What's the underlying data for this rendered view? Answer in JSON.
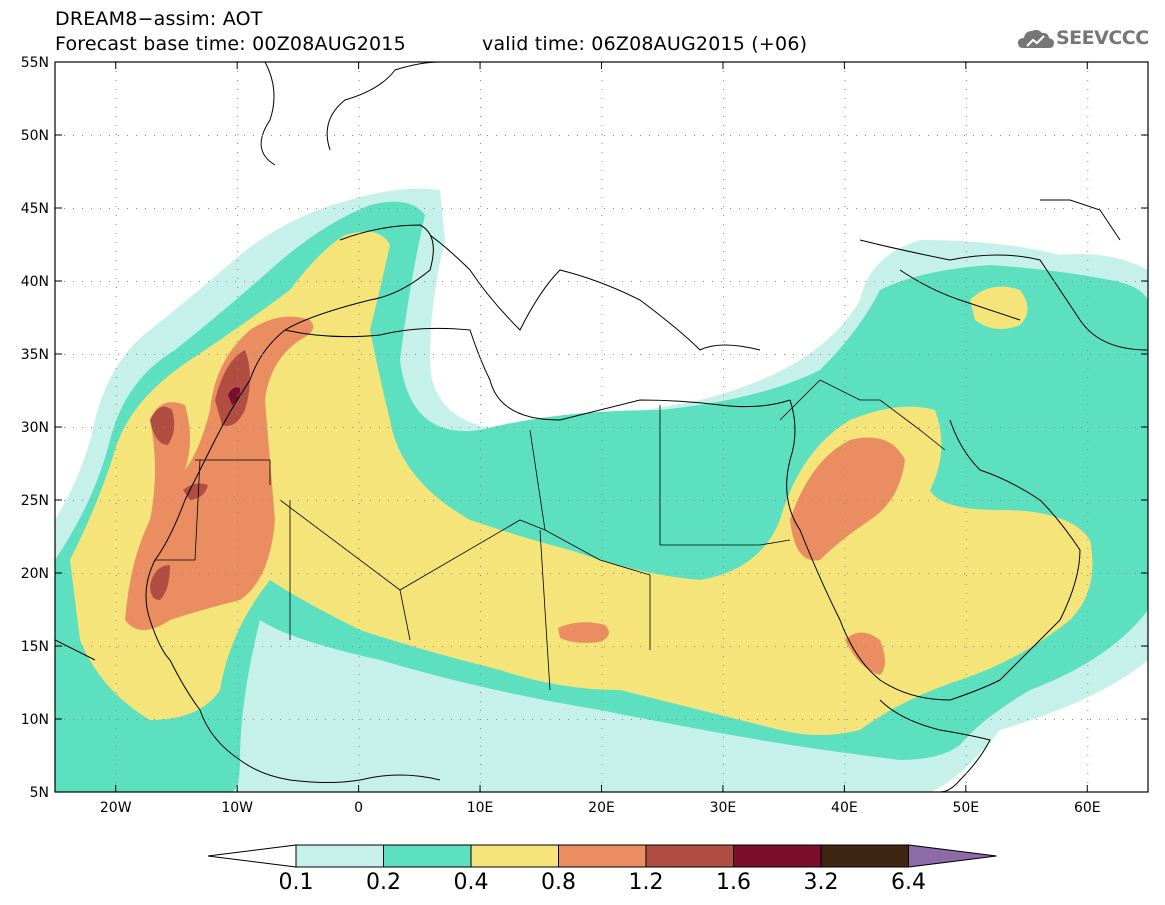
{
  "title": {
    "line1": "DREAM8−assim: AOT",
    "line2": "Forecast base time: 00Z08AUG2015",
    "valid": "valid time: 06Z08AUG2015 (+06)"
  },
  "logo": {
    "text": "SEEVCCC",
    "icon": "cloud-icon"
  },
  "axes": {
    "lat_labels": [
      "55N",
      "50N",
      "45N",
      "40N",
      "35N",
      "30N",
      "25N",
      "20N",
      "15N",
      "10N",
      "5N"
    ],
    "lon_labels": [
      "20W",
      "10W",
      "0",
      "10E",
      "20E",
      "30E",
      "40E",
      "50E",
      "60E"
    ],
    "lat_range": [
      5,
      55
    ],
    "lon_range": [
      -25,
      65
    ]
  },
  "colorbar": {
    "labels": [
      "0.1",
      "0.2",
      "0.4",
      "0.8",
      "1.2",
      "1.6",
      "3.2",
      "6.4"
    ],
    "colors": [
      "#ffffff",
      "#c6f0ea",
      "#5ce0c0",
      "#f5e47a",
      "#ea8e62",
      "#b14e42",
      "#7c0d2c",
      "#3e2612",
      "#8f6aa8"
    ]
  }
}
